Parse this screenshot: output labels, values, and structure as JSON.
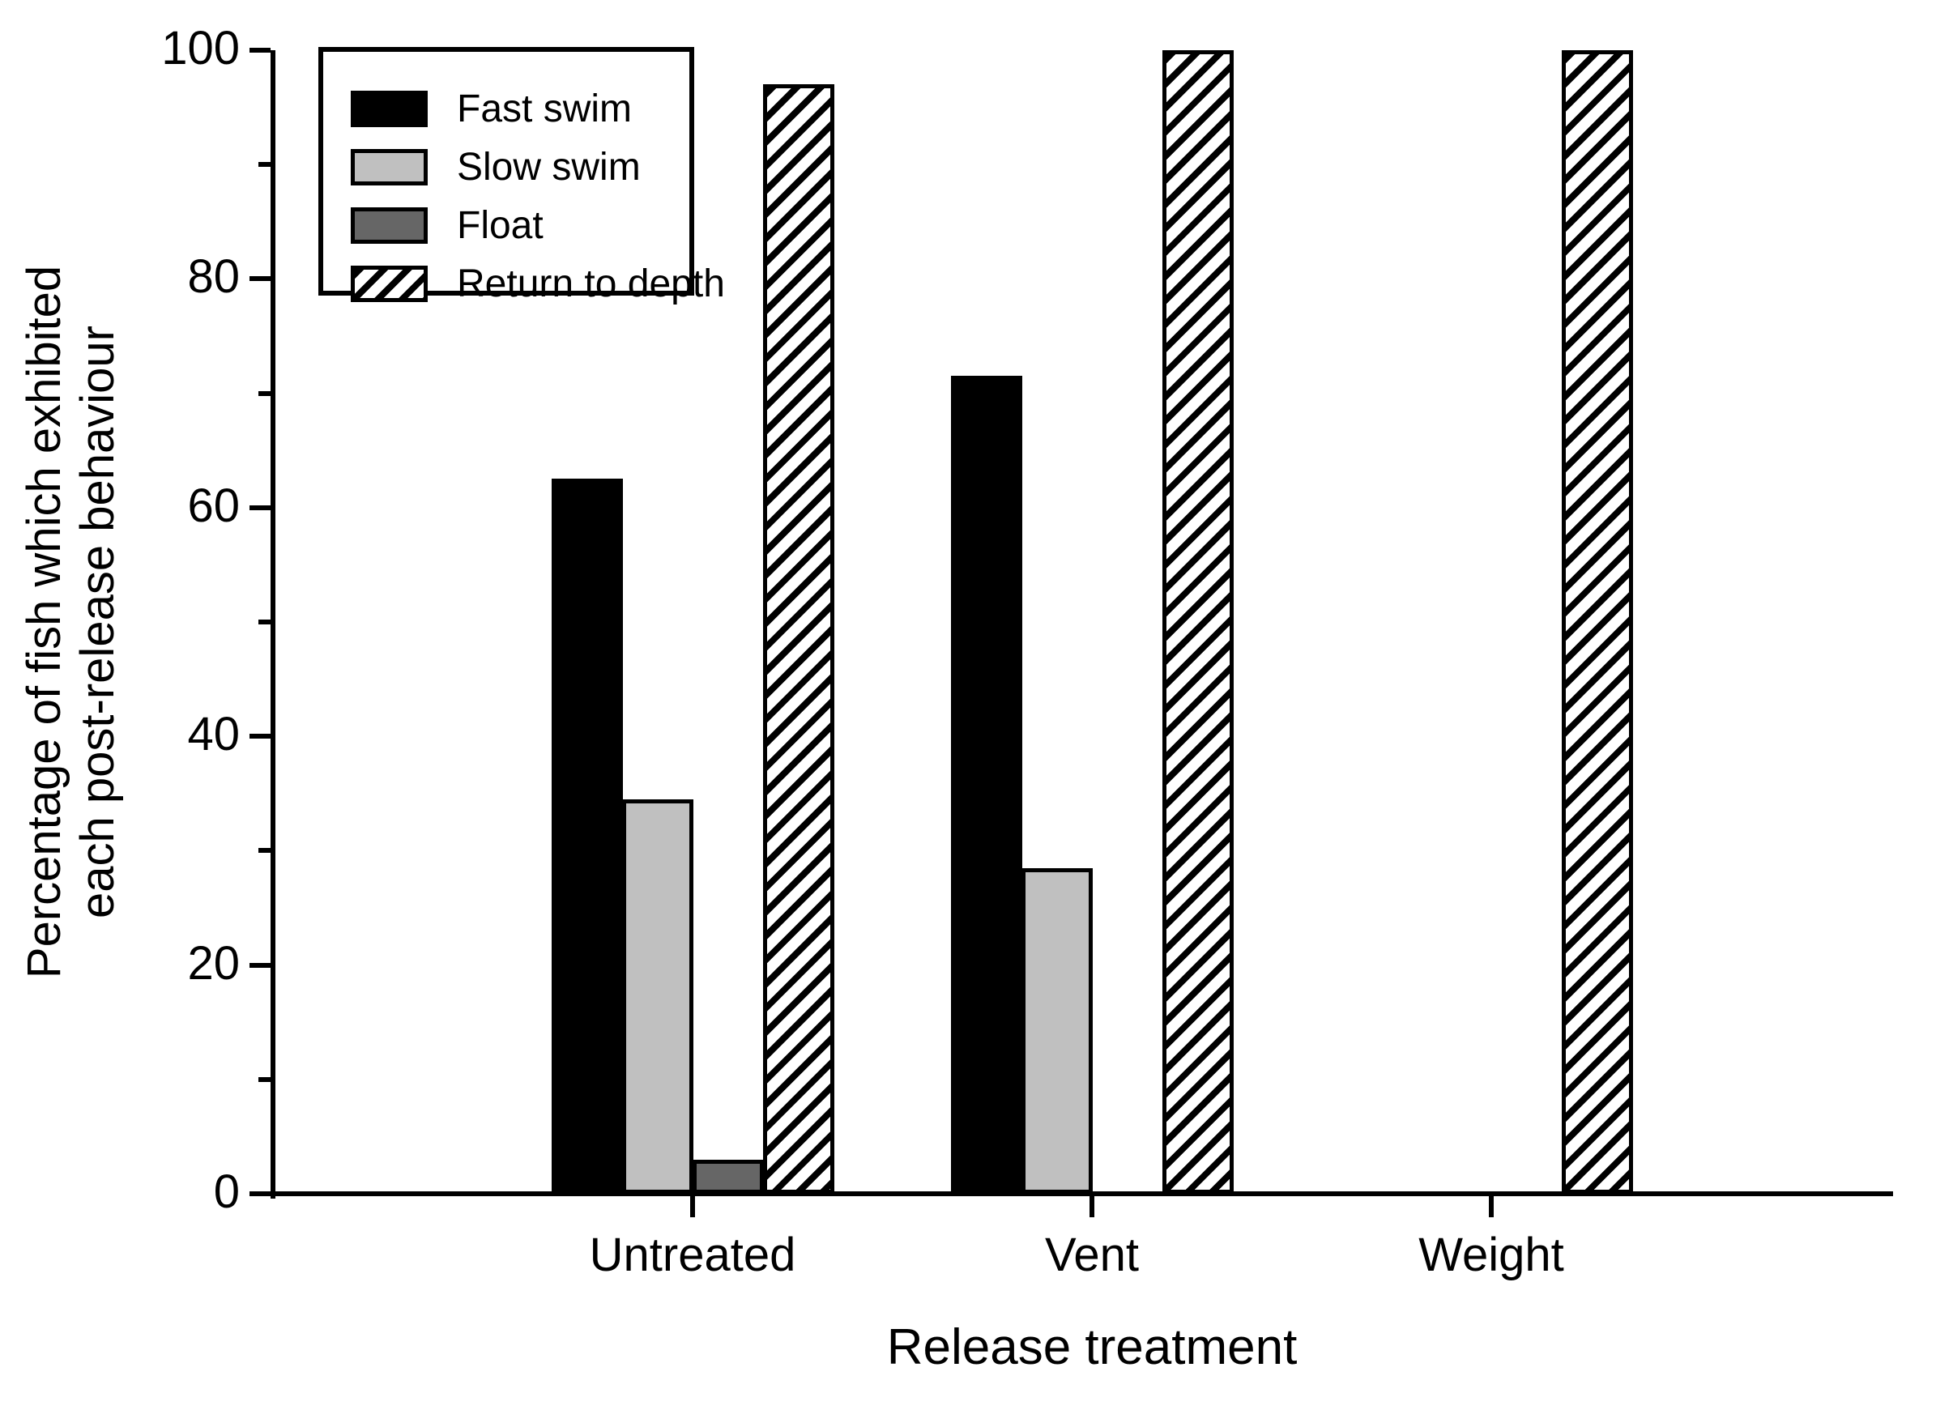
{
  "figure": {
    "background": "#ffffff",
    "axis_color": "#000000"
  },
  "chart_data": {
    "type": "bar",
    "title": "",
    "xlabel": "Release treatment",
    "ylabel": "Percentage of fish which exhibited each post-release behaviour",
    "ylabel_lines": [
      "Percentage of fish which exhibited",
      "each post-release behaviour"
    ],
    "categories": [
      "Untreated",
      "Vent",
      "Weight"
    ],
    "series": [
      {
        "name": "Fast swim",
        "style": "solid",
        "color": "#000000",
        "values": [
          62.5,
          71.5,
          0
        ]
      },
      {
        "name": "Slow swim",
        "style": "solid",
        "color": "#c0c0c0",
        "values": [
          34.5,
          28.5,
          0
        ]
      },
      {
        "name": "Float",
        "style": "solid",
        "color": "#666666",
        "values": [
          3,
          0,
          0
        ]
      },
      {
        "name": "Return to depth",
        "style": "hatch",
        "color": "#ffffff",
        "values": [
          97,
          100,
          100
        ]
      }
    ],
    "ylim": [
      0,
      100
    ],
    "yticks_major": [
      0,
      20,
      40,
      60,
      80,
      100
    ],
    "yticks_minor": [
      10,
      30,
      50,
      70,
      90
    ],
    "bar_outline": "#000000",
    "grid": false,
    "legend": {
      "position": "upper-left",
      "entries": [
        "Fast swim",
        "Slow swim",
        "Float",
        "Return to depth"
      ]
    }
  }
}
